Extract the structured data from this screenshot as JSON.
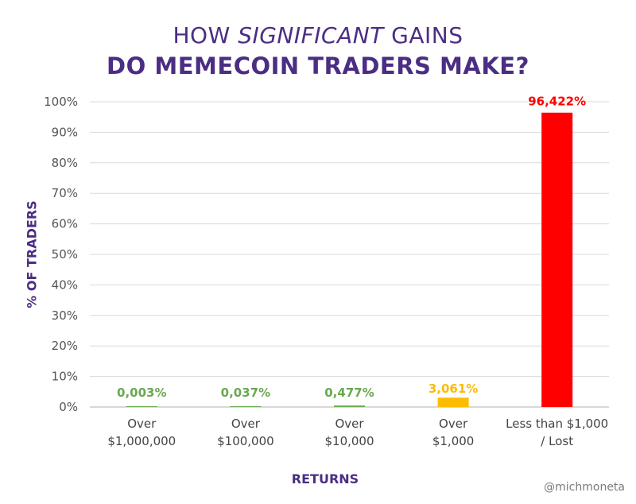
{
  "title": {
    "line1_pre": "HOW ",
    "line1_em": "SIGNIFICANT",
    "line1_post": " GAINS",
    "line2": "DO MEMECOIN TRADERS MAKE?"
  },
  "credit": "@michmoneta",
  "chart_data": {
    "type": "bar",
    "xlabel": "RETURNS",
    "ylabel": "% OF TRADERS",
    "ylim": [
      0,
      100
    ],
    "yticks": [
      0,
      10,
      20,
      30,
      40,
      50,
      60,
      70,
      80,
      90,
      100
    ],
    "ytick_labels": [
      "0%",
      "10%",
      "20%",
      "30%",
      "40%",
      "50%",
      "60%",
      "70%",
      "80%",
      "90%",
      "100%"
    ],
    "categories": [
      [
        "Over",
        "$1,000,000"
      ],
      [
        "Over",
        "$100,000"
      ],
      [
        "Over",
        "$10,000"
      ],
      [
        "Over",
        "$1,000"
      ],
      [
        "Less than $1,000",
        "/ Lost"
      ]
    ],
    "values": [
      0.003,
      0.037,
      0.477,
      3.061,
      96.422
    ],
    "value_labels": [
      "0,003%",
      "0,037%",
      "0,477%",
      "3,061%",
      "96,422%"
    ],
    "colors": [
      "#6aa84f",
      "#6aa84f",
      "#6aa84f",
      "#fbbc04",
      "#ff0000"
    ],
    "grid": true
  }
}
